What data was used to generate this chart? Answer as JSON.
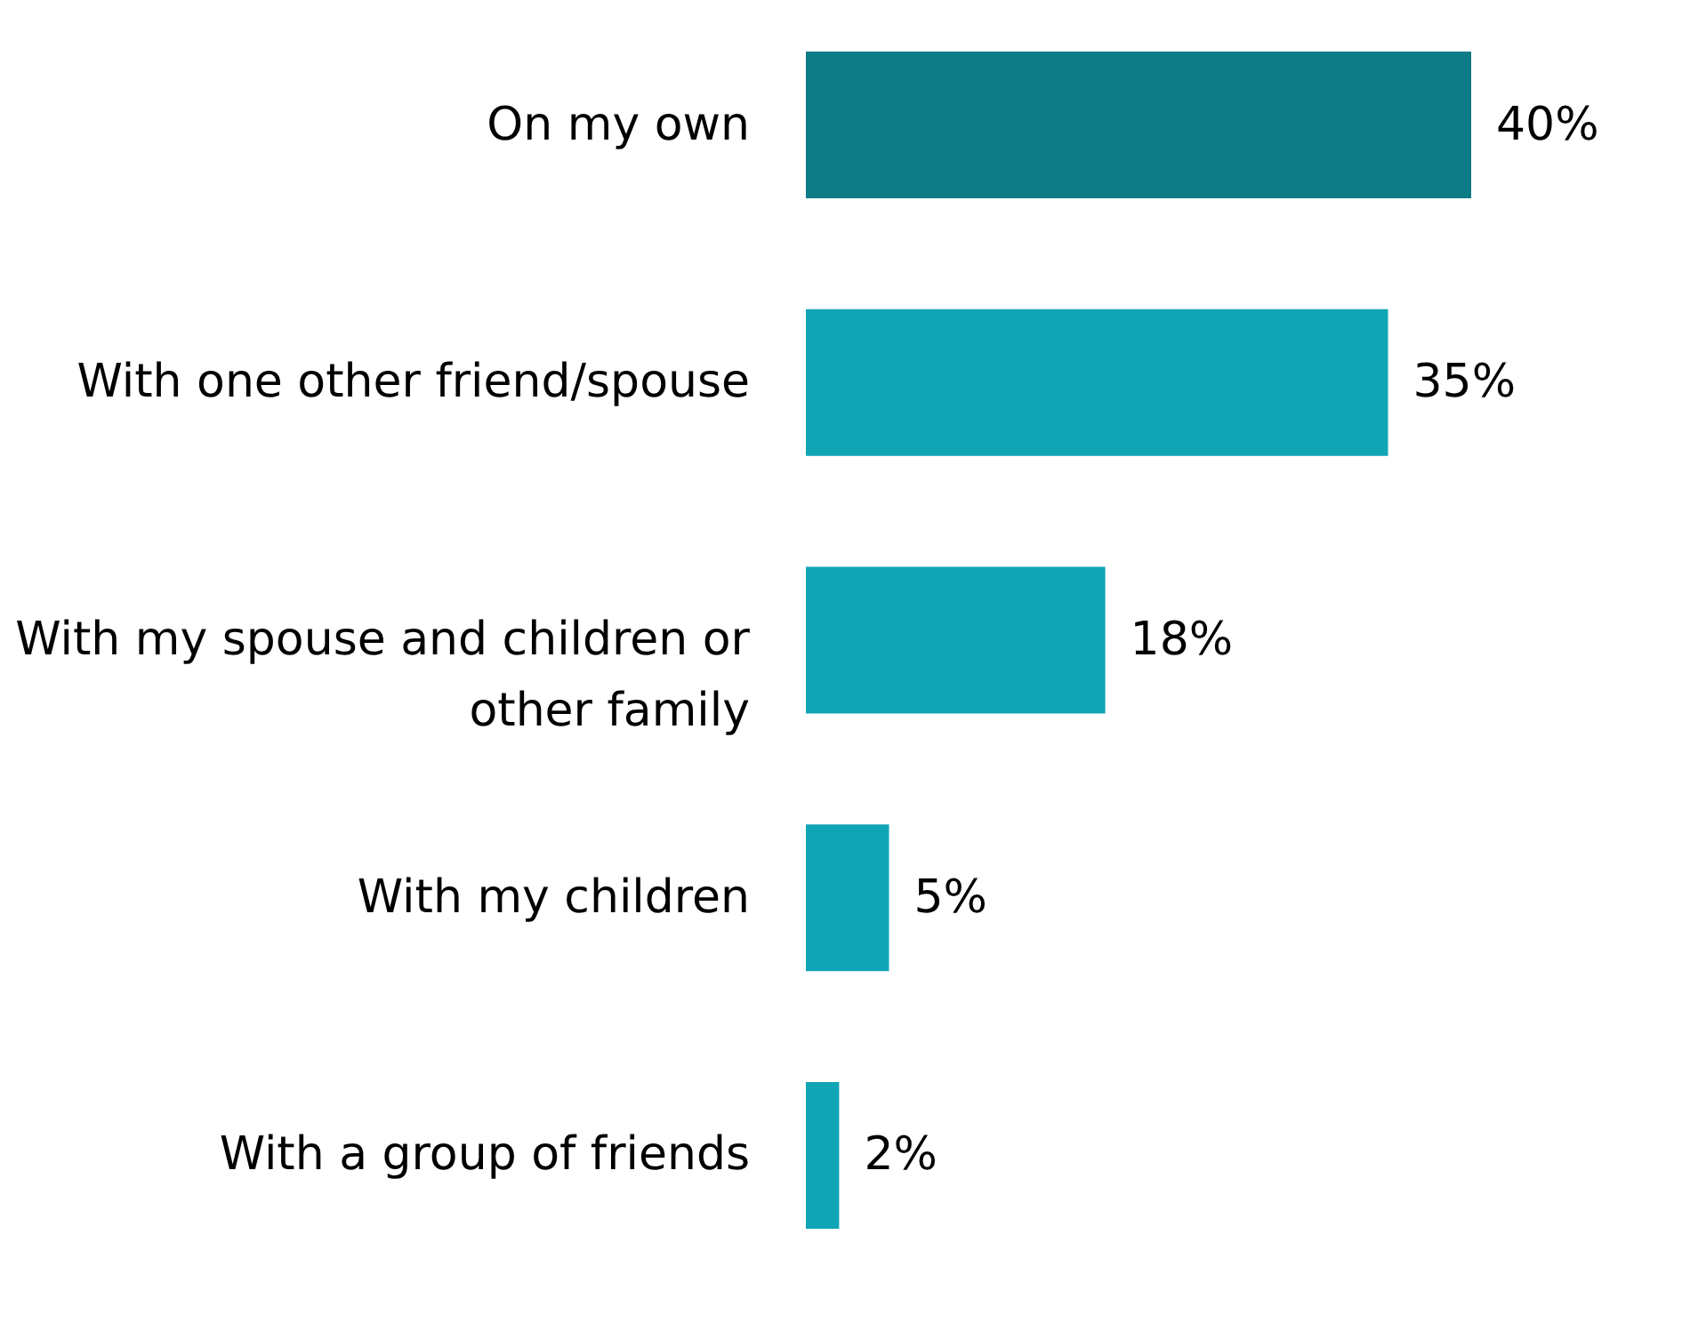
{
  "chart_data": {
    "type": "bar",
    "orientation": "horizontal",
    "categories": [
      "On my own",
      "With one other friend/spouse",
      "With my spouse and children or other family",
      "With my children",
      "With a group of friends"
    ],
    "values": [
      40,
      35,
      18,
      5,
      2
    ],
    "colors": [
      "#0e7c86",
      "#10a5b5",
      "#10a5b5",
      "#10a5b5",
      "#10a5b5"
    ],
    "value_labels": [
      "40%",
      "35%",
      "18%",
      "5%",
      "2%"
    ],
    "grid": false
  }
}
